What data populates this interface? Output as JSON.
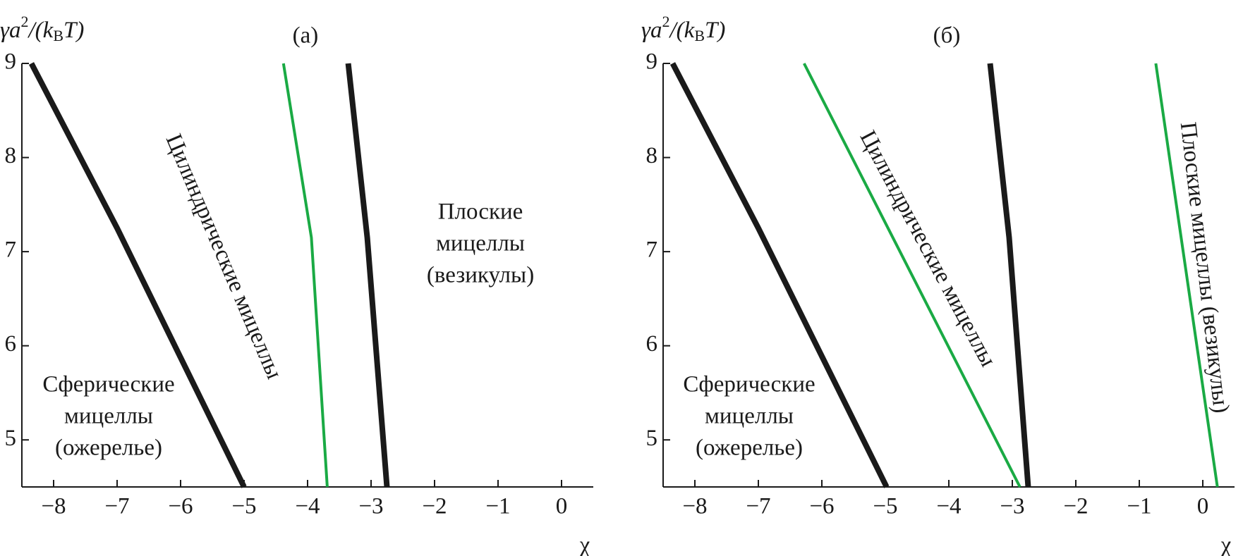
{
  "chart_data": [
    {
      "type": "line",
      "title": "(а)",
      "xlabel": "χ",
      "ylabel": {
        "base": "γa",
        "sup": "2",
        "mid": "/(k",
        "sub": "B",
        "end": "T)"
      },
      "xlim": [
        -8.5,
        0.5
      ],
      "ylim": [
        4.5,
        9
      ],
      "xticks": [
        {
          "value": -8,
          "label": "−8"
        },
        {
          "value": -7,
          "label": "−7"
        },
        {
          "value": -6,
          "label": "−6"
        },
        {
          "value": -5,
          "label": "−5"
        },
        {
          "value": -4,
          "label": "−4"
        },
        {
          "value": -3,
          "label": "−3"
        },
        {
          "value": -2,
          "label": "−2"
        },
        {
          "value": -1,
          "label": "−1"
        },
        0
      ],
      "yticks": [
        5,
        6,
        7,
        8,
        9
      ],
      "series": [
        {
          "color": "#1a1a1a",
          "x": [
            -8.35,
            -7.0,
            -5.0
          ],
          "values": [
            9,
            7.25,
            4.5
          ]
        },
        {
          "color": "#1aaa44",
          "x": [
            -4.38,
            -3.94,
            -3.69
          ],
          "values": [
            9,
            7.15,
            4.5
          ]
        },
        {
          "color": "#1a1a1a",
          "x": [
            -3.36,
            -3.06,
            -2.75
          ],
          "values": [
            9,
            7.15,
            4.5
          ]
        }
      ],
      "annotations": [
        {
          "lines": [
            "Сферические",
            "мицеллы",
            "(ожерелье)"
          ]
        },
        {
          "lines": [
            "Цилиндрические мицеллы"
          ]
        },
        {
          "lines": [
            "Плоские",
            "мицеллы",
            "(везикулы)"
          ]
        }
      ]
    },
    {
      "type": "line",
      "title": "(б)",
      "xlabel": "χ",
      "ylabel": {
        "base": "γa",
        "sup": "2",
        "mid": "/(k",
        "sub": "B",
        "end": "T)"
      },
      "xlim": [
        -8.5,
        0.5
      ],
      "ylim": [
        4.5,
        9
      ],
      "xticks": [
        {
          "value": -8,
          "label": "−8"
        },
        {
          "value": -7,
          "label": "−7"
        },
        {
          "value": -6,
          "label": "−6"
        },
        {
          "value": -5,
          "label": "−5"
        },
        {
          "value": -4,
          "label": "−4"
        },
        {
          "value": -3,
          "label": "−3"
        },
        {
          "value": -2,
          "label": "−2"
        },
        {
          "value": -1,
          "label": "−1"
        },
        0
      ],
      "yticks": [
        5,
        6,
        7,
        8,
        9
      ],
      "series": [
        {
          "color": "#1a1a1a",
          "x": [
            -8.35,
            -7.0,
            -4.98
          ],
          "values": [
            9,
            7.25,
            4.5
          ]
        },
        {
          "color": "#1aaa44",
          "x": [
            -6.28,
            -2.88
          ],
          "values": [
            9,
            4.5
          ]
        },
        {
          "color": "#1a1a1a",
          "x": [
            -3.35,
            -3.05,
            -2.75
          ],
          "values": [
            9,
            7.15,
            4.5
          ]
        },
        {
          "color": "#1aaa44",
          "x": [
            -0.74,
            0.23
          ],
          "values": [
            9,
            4.5
          ]
        }
      ],
      "annotations": [
        {
          "lines": [
            "Сферические",
            "мицеллы",
            "(ожерелье)"
          ]
        },
        {
          "lines": [
            "Цилиндрические мицеллы"
          ]
        },
        {
          "lines": [
            "Плоские мицеллы (везикулы)"
          ]
        }
      ]
    }
  ]
}
